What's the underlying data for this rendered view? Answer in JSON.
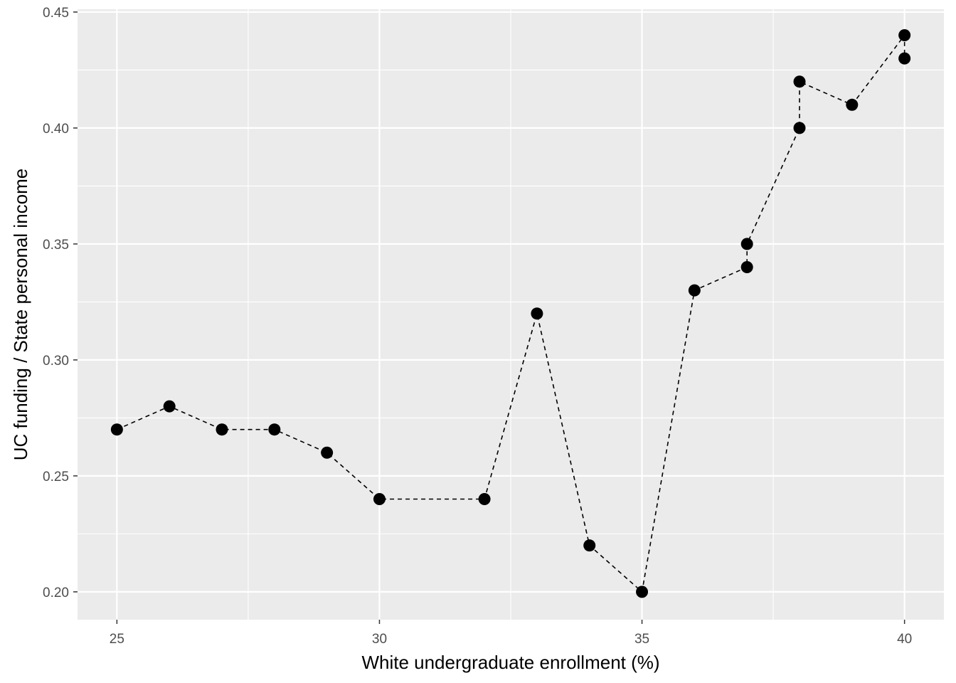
{
  "chart_data": {
    "type": "line",
    "xlabel": "White undergraduate enrollment (%)",
    "ylabel": "UC funding / State  personal income",
    "xlim": [
      24.25,
      40.75
    ],
    "ylim": [
      0.188,
      0.4512
    ],
    "x_ticks": [
      25,
      30,
      35,
      40
    ],
    "x_tick_labels": [
      "25",
      "30",
      "35",
      "40"
    ],
    "y_ticks": [
      0.2,
      0.25,
      0.3,
      0.35,
      0.4,
      0.45
    ],
    "y_tick_labels": [
      "0.20",
      "0.25",
      "0.30",
      "0.35",
      "0.40",
      "0.45"
    ],
    "grid": true,
    "line_style": "dashed",
    "marker": "filled-circle",
    "colors": {
      "panel": "#ebebeb",
      "grid": "#ffffff",
      "marks": "#000000"
    },
    "series": [
      {
        "points": [
          {
            "x": 25,
            "y": 0.27
          },
          {
            "x": 26,
            "y": 0.28
          },
          {
            "x": 27,
            "y": 0.27
          },
          {
            "x": 28,
            "y": 0.27
          },
          {
            "x": 29,
            "y": 0.26
          },
          {
            "x": 30,
            "y": 0.24
          },
          {
            "x": 32,
            "y": 0.24
          },
          {
            "x": 33,
            "y": 0.32
          },
          {
            "x": 34,
            "y": 0.22
          },
          {
            "x": 35,
            "y": 0.2
          },
          {
            "x": 36,
            "y": 0.33
          },
          {
            "x": 37,
            "y": 0.34
          },
          {
            "x": 37,
            "y": 0.35
          },
          {
            "x": 38,
            "y": 0.4
          },
          {
            "x": 38,
            "y": 0.42
          },
          {
            "x": 39,
            "y": 0.41
          },
          {
            "x": 40,
            "y": 0.44
          },
          {
            "x": 40,
            "y": 0.43
          }
        ]
      }
    ]
  }
}
